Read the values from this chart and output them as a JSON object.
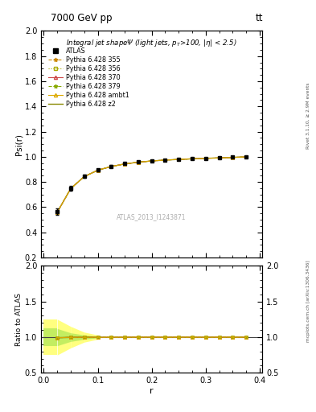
{
  "title_top": "7000 GeV pp",
  "title_top_right": "tt",
  "panel_title": "Integral jet shapeΨ (light jets, p_{T}>100, |η| < 2.5)",
  "ylabel_main": "Psi(r)",
  "ylabel_ratio": "Ratio to ATLAS",
  "xlabel": "r",
  "watermark": "ATLAS_2013_I1243871",
  "right_label_top": "Rivet 3.1.10, ≥ 2.9M events",
  "right_label_bottom": "mcplots.cern.ch [arXiv:1306.3436]",
  "ylim_main": [
    0.2,
    2.0
  ],
  "ylim_ratio": [
    0.5,
    2.0
  ],
  "xlim": [
    -0.005,
    0.405
  ],
  "r_values": [
    0.025,
    0.05,
    0.075,
    0.1,
    0.125,
    0.15,
    0.175,
    0.2,
    0.225,
    0.25,
    0.275,
    0.3,
    0.325,
    0.35,
    0.375
  ],
  "atlas_data": [
    0.565,
    0.75,
    0.845,
    0.895,
    0.925,
    0.945,
    0.958,
    0.968,
    0.975,
    0.98,
    0.985,
    0.989,
    0.992,
    0.996,
    1.0
  ],
  "atlas_err": [
    0.025,
    0.018,
    0.012,
    0.008,
    0.007,
    0.006,
    0.005,
    0.004,
    0.004,
    0.003,
    0.003,
    0.003,
    0.002,
    0.002,
    0.002
  ],
  "pythia_355": [
    0.56,
    0.748,
    0.843,
    0.893,
    0.923,
    0.943,
    0.957,
    0.967,
    0.974,
    0.979,
    0.984,
    0.988,
    0.991,
    0.995,
    0.999
  ],
  "pythia_356": [
    0.56,
    0.748,
    0.843,
    0.893,
    0.923,
    0.943,
    0.957,
    0.967,
    0.974,
    0.979,
    0.984,
    0.988,
    0.991,
    0.995,
    0.999
  ],
  "pythia_370": [
    0.56,
    0.748,
    0.843,
    0.893,
    0.923,
    0.943,
    0.957,
    0.967,
    0.974,
    0.979,
    0.984,
    0.988,
    0.991,
    0.995,
    0.999
  ],
  "pythia_379": [
    0.56,
    0.748,
    0.843,
    0.893,
    0.923,
    0.943,
    0.957,
    0.967,
    0.974,
    0.979,
    0.984,
    0.988,
    0.991,
    0.995,
    0.999
  ],
  "pythia_ambt1": [
    0.56,
    0.748,
    0.843,
    0.893,
    0.923,
    0.943,
    0.957,
    0.967,
    0.974,
    0.979,
    0.984,
    0.988,
    0.991,
    0.995,
    0.999
  ],
  "pythia_z2": [
    0.56,
    0.748,
    0.843,
    0.893,
    0.923,
    0.943,
    0.957,
    0.967,
    0.974,
    0.979,
    0.984,
    0.988,
    0.991,
    0.995,
    0.999
  ],
  "color_355": "#cc8800",
  "color_356": "#aaaa00",
  "color_370": "#cc4444",
  "color_379": "#88aa00",
  "color_ambt1": "#ddaa00",
  "color_z2": "#888800",
  "color_atlas": "#000000",
  "ratio_355": [
    0.992,
    0.997,
    0.998,
    0.998,
    0.998,
    0.999,
    0.999,
    0.999,
    0.999,
    0.999,
    0.999,
    0.999,
    0.999,
    0.999,
    0.999
  ],
  "ratio_356": [
    0.992,
    0.997,
    0.998,
    0.998,
    0.998,
    0.999,
    0.999,
    0.999,
    0.999,
    0.999,
    0.999,
    0.999,
    0.999,
    0.999,
    0.999
  ],
  "ratio_370": [
    0.992,
    0.997,
    0.998,
    0.998,
    0.998,
    0.999,
    0.999,
    0.999,
    0.999,
    0.999,
    0.999,
    0.999,
    0.999,
    0.999,
    0.999
  ],
  "ratio_379": [
    0.992,
    0.997,
    0.998,
    0.998,
    0.998,
    0.999,
    0.999,
    0.999,
    0.999,
    0.999,
    0.999,
    0.999,
    0.999,
    0.999,
    0.999
  ],
  "ratio_ambt1": [
    0.992,
    0.997,
    0.998,
    0.998,
    0.998,
    0.999,
    0.999,
    0.999,
    0.999,
    0.999,
    0.999,
    0.999,
    0.999,
    0.999,
    0.999
  ],
  "ratio_z2": [
    0.992,
    0.997,
    0.998,
    0.998,
    0.998,
    0.999,
    0.999,
    0.999,
    0.999,
    0.999,
    0.999,
    0.999,
    0.999,
    0.999,
    0.999
  ],
  "bg_color": "#ffffff"
}
